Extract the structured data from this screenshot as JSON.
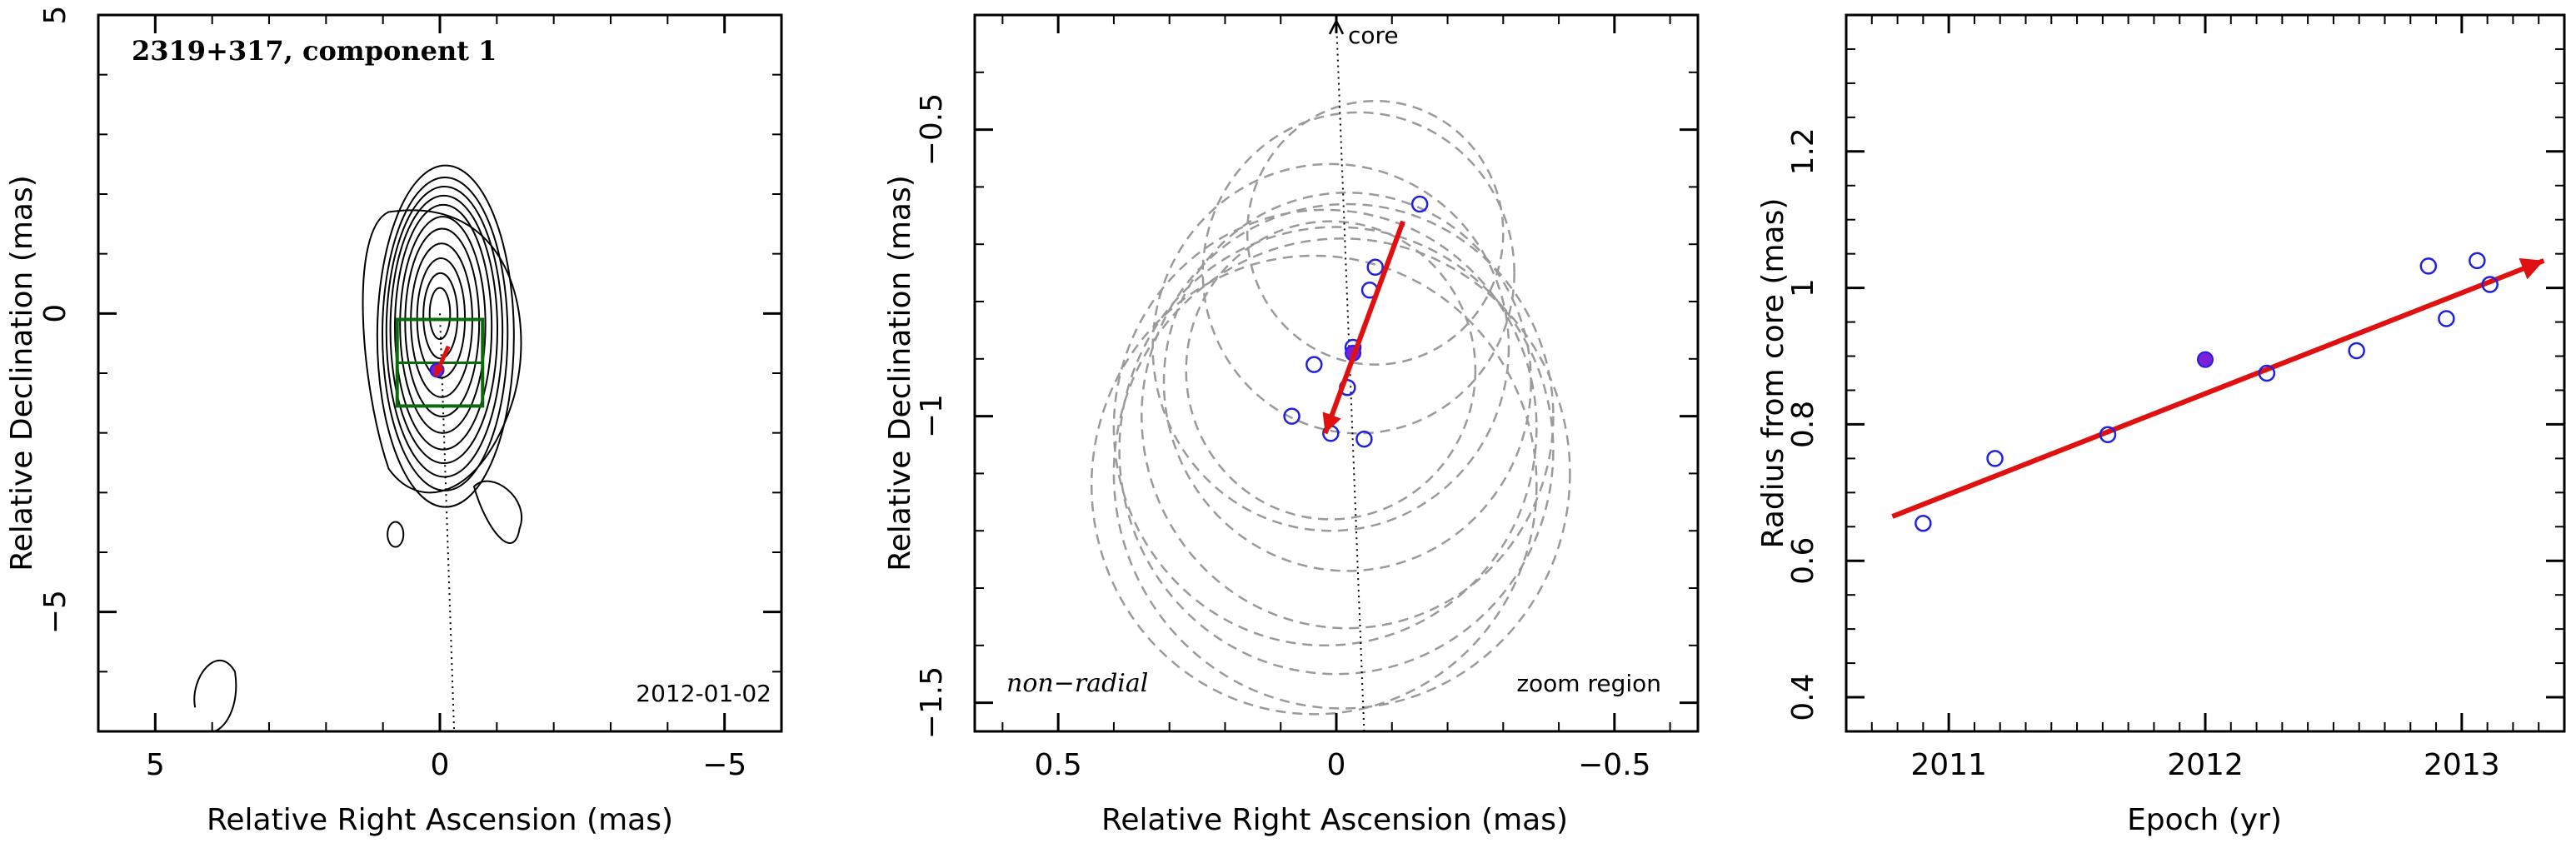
{
  "chart_data": [
    {
      "type": "contour",
      "title": "2319+317, component 1",
      "date_label": "2012-01-02",
      "xlabel": "Relative Right Ascension (mas)",
      "ylabel": "Relative Declination (mas)",
      "xlim": [
        6,
        -6
      ],
      "ylim": [
        -7,
        5
      ],
      "x_ticks": [
        "5",
        "0",
        "−5"
      ],
      "y_ticks": [
        "5",
        "0",
        "−5"
      ],
      "zoom_box": {
        "ra": [
          0.75,
          -0.75
        ],
        "dec": [
          -0.1,
          -1.55
        ]
      },
      "component": {
        "ra": 0.05,
        "dec": -0.95
      },
      "core_line": {
        "from": [
          0,
          0
        ],
        "to": [
          -0.25,
          -7
        ]
      }
    },
    {
      "type": "scatter",
      "xlabel": "Relative Right Ascension (mas)",
      "ylabel": "Relative Declination (mas)",
      "xlim": [
        0.65,
        -0.65
      ],
      "ylim": [
        -1.55,
        -0.3
      ],
      "x_ticks": [
        "0.5",
        "0",
        "−0.5"
      ],
      "y_ticks": [
        "−0.5",
        "−1",
        "−1.5"
      ],
      "core_label": "core",
      "motion_label": "non−radial",
      "region_label": "zoom region",
      "points": [
        {
          "ra": -0.15,
          "dec": -0.63
        },
        {
          "ra": -0.07,
          "dec": -0.74
        },
        {
          "ra": -0.06,
          "dec": -0.78
        },
        {
          "ra": 0.04,
          "dec": -0.91
        },
        {
          "ra": 0.08,
          "dec": -1.0
        },
        {
          "ra": -0.02,
          "dec": -0.95
        },
        {
          "ra": -0.03,
          "dec": -0.88
        },
        {
          "ra": 0.01,
          "dec": -1.03
        },
        {
          "ra": -0.05,
          "dec": -1.04
        }
      ],
      "highlight": {
        "ra": -0.03,
        "dec": -0.89
      },
      "vector": {
        "from": {
          "ra": -0.12,
          "dec": -0.66
        },
        "to": {
          "ra": 0.02,
          "dec": -1.03
        }
      },
      "circles": [
        {
          "ra": -0.07,
          "dec": -0.68,
          "r": 0.23
        },
        {
          "ra": -0.04,
          "dec": -0.75,
          "r": 0.28
        },
        {
          "ra": 0.01,
          "dec": -0.88,
          "r": 0.32
        },
        {
          "ra": -0.02,
          "dec": -0.94,
          "r": 0.33
        },
        {
          "ra": -0.02,
          "dec": -1.0,
          "r": 0.37
        },
        {
          "ra": 0.02,
          "dec": -1.02,
          "r": 0.38
        },
        {
          "ra": -0.01,
          "dec": -1.1,
          "r": 0.41
        },
        {
          "ra": 0.0,
          "dec": -1.06,
          "r": 0.39
        },
        {
          "ra": 0.04,
          "dec": -1.12,
          "r": 0.4
        },
        {
          "ra": 0.01,
          "dec": -0.92,
          "r": 0.26
        }
      ],
      "core_direction": {
        "from": {
          "ra": -0.05,
          "dec": -1.55
        },
        "to": {
          "ra": 0.0,
          "dec": -0.31
        }
      }
    },
    {
      "type": "scatter",
      "xlabel": "Epoch (yr)",
      "ylabel": "Radius from core (mas)",
      "xlim": [
        2010.6,
        2013.4
      ],
      "ylim": [
        0.35,
        1.4
      ],
      "x_ticks": [
        "2011",
        "2012",
        "2013"
      ],
      "y_ticks": [
        "0.4",
        "0.6",
        "0.8",
        "1",
        "1.2"
      ],
      "points": [
        {
          "x": 2010.9,
          "y": 0.655
        },
        {
          "x": 2011.18,
          "y": 0.75
        },
        {
          "x": 2011.62,
          "y": 0.785
        },
        {
          "x": 2012.24,
          "y": 0.875
        },
        {
          "x": 2012.59,
          "y": 0.908
        },
        {
          "x": 2012.87,
          "y": 1.032
        },
        {
          "x": 2012.94,
          "y": 0.955
        },
        {
          "x": 2013.06,
          "y": 1.04
        },
        {
          "x": 2013.11,
          "y": 1.005
        }
      ],
      "highlight": {
        "x": 2012.0,
        "y": 0.895
      },
      "fit_line": {
        "x": [
          2010.78,
          2013.32
        ],
        "y": [
          0.665,
          1.04
        ]
      }
    }
  ]
}
